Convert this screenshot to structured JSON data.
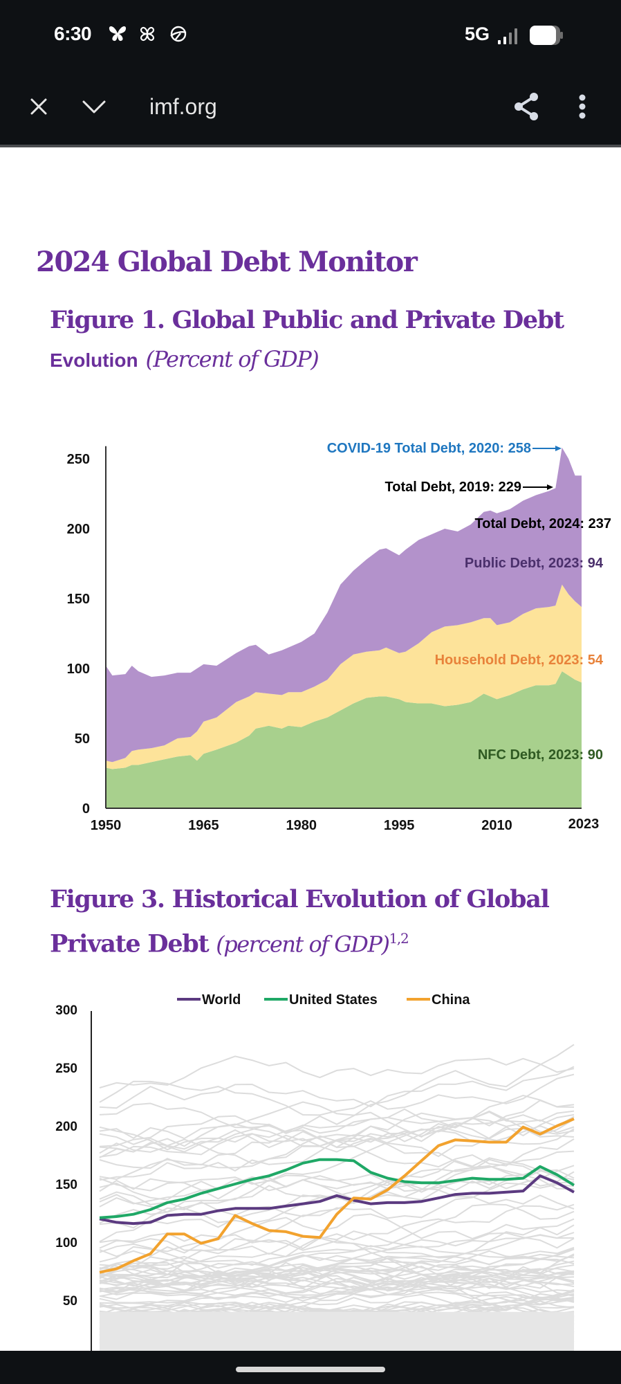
{
  "status_bar": {
    "time": "6:30",
    "notification_icons": [
      "butterfly-icon",
      "pinwheel-icon",
      "planet-icon"
    ],
    "network": "5G",
    "signal_icon": "signal-bars-icon",
    "battery_icon": "battery-icon"
  },
  "toolbar": {
    "close_icon": "close-icon",
    "collapse_icon": "chevron-down-icon",
    "url": "imf.org",
    "share_icon": "share-icon",
    "menu_icon": "more-vertical-icon"
  },
  "article": {
    "title": "2024 Global Debt Monitor",
    "figure1": {
      "title_line1": "Figure 1. Global Public and Private Debt",
      "title_line2": "Evolution",
      "units": "(Percent of GDP)"
    },
    "figure3": {
      "title_line1": "Figure 3. Historical Evolution of Global",
      "title_line2": "Private Debt",
      "units": "(percent of GDP)",
      "footnote_marks": "1,2"
    }
  },
  "chart_data": [
    {
      "type": "area",
      "stacked": true,
      "title": "Figure 1. Global Public and Private Debt Evolution (Percent of GDP)",
      "xlabel": "",
      "ylabel": "",
      "xlim": [
        1950,
        2023
      ],
      "ylim": [
        0,
        260
      ],
      "yticks": [
        "0",
        "50",
        "100",
        "150",
        "200",
        "250"
      ],
      "ytick_values": [
        0,
        50,
        100,
        150,
        200,
        250
      ],
      "xticks": [
        "1950",
        "1965",
        "1980",
        "1995",
        "2010",
        "2023"
      ],
      "xtick_values": [
        1950,
        1965,
        1980,
        1995,
        2010,
        2023
      ],
      "grid": false,
      "x": [
        1950,
        1951,
        1953,
        1954,
        1955,
        1957,
        1959,
        1961,
        1963,
        1964,
        1965,
        1967,
        1970,
        1972,
        1973,
        1975,
        1977,
        1978,
        1980,
        1982,
        1984,
        1986,
        1988,
        1990,
        1992,
        1993,
        1995,
        1996,
        1998,
        2000,
        2002,
        2004,
        2006,
        2008,
        2009,
        2010,
        2012,
        2014,
        2016,
        2018,
        2019,
        2020,
        2021,
        2022,
        2023
      ],
      "series": [
        {
          "name": "NFC Debt",
          "color": "#a8d08d",
          "values": [
            29,
            28,
            29,
            31,
            31,
            33,
            35,
            37,
            38,
            34,
            39,
            42,
            47,
            52,
            57,
            59,
            57,
            59,
            58,
            62,
            65,
            70,
            75,
            79,
            80,
            80,
            78,
            76,
            75,
            75,
            73,
            74,
            76,
            82,
            80,
            78,
            81,
            85,
            88,
            88,
            89,
            98,
            95,
            92,
            90
          ]
        },
        {
          "name": "Household Debt",
          "color": "#fde39a",
          "values": [
            5,
            5,
            7,
            10,
            11,
            10,
            10,
            13,
            13,
            21,
            23,
            23,
            29,
            28,
            26,
            23,
            24,
            24,
            25,
            25,
            27,
            33,
            35,
            33,
            33,
            35,
            33,
            36,
            43,
            51,
            57,
            57,
            57,
            54,
            56,
            53,
            52,
            54,
            55,
            56,
            56,
            62,
            58,
            56,
            54
          ]
        },
        {
          "name": "Public Debt",
          "color": "#b392cb",
          "values": [
            68,
            62,
            60,
            61,
            56,
            51,
            50,
            47,
            46,
            45,
            41,
            37,
            35,
            36,
            34,
            28,
            32,
            32,
            36,
            38,
            48,
            57,
            60,
            66,
            72,
            71,
            70,
            73,
            74,
            70,
            70,
            67,
            70,
            76,
            77,
            80,
            81,
            81,
            81,
            83,
            84,
            98,
            97,
            90,
            94
          ]
        }
      ],
      "annotations": [
        {
          "text": "COVID-19 Total Debt, 2020: 258",
          "color": "#1f77c0",
          "arrow": true
        },
        {
          "text": "Total Debt, 2019: 229",
          "color": "#000000",
          "arrow": true
        },
        {
          "text": "Total Debt, 2024: 237",
          "color": "#000000",
          "arrow": false
        },
        {
          "text": "Public Debt, 2023: 94",
          "color": "#4a2f6b",
          "arrow": false
        },
        {
          "text": "Household Debt, 2023: 54",
          "color": "#e8823a",
          "arrow": false
        },
        {
          "text": "NFC Debt, 2023: 90",
          "color": "#2f5a22",
          "arrow": false
        }
      ]
    },
    {
      "type": "line",
      "title": "Figure 3. Historical Evolution of Global Private Debt (percent of GDP)",
      "xlabel": "",
      "ylabel": "",
      "ylim": [
        0,
        300
      ],
      "yticks": [
        "50",
        "100",
        "150",
        "200",
        "250",
        "300"
      ],
      "ytick_values": [
        50,
        100,
        150,
        200,
        250,
        300
      ],
      "grid": false,
      "legend": "top-center",
      "x_index": [
        0,
        1,
        2,
        3,
        4,
        5,
        6,
        7,
        8,
        9,
        10,
        11,
        12,
        13,
        14,
        15,
        16,
        17,
        18,
        19,
        20,
        21,
        22,
        23,
        24,
        25,
        26,
        27,
        28
      ],
      "series": [
        {
          "name": "World",
          "color": "#5b3a80",
          "values": [
            120,
            117,
            116,
            117,
            123,
            124,
            124,
            127,
            129,
            129,
            129,
            131,
            133,
            135,
            140,
            136,
            133,
            134,
            134,
            135,
            138,
            141,
            142,
            142,
            143,
            144,
            157,
            151,
            143
          ]
        },
        {
          "name": "United States",
          "color": "#1fa866",
          "values": [
            121,
            122,
            124,
            128,
            134,
            137,
            142,
            146,
            150,
            154,
            157,
            162,
            168,
            171,
            171,
            170,
            160,
            155,
            152,
            151,
            151,
            153,
            155,
            154,
            154,
            155,
            165,
            158,
            149
          ]
        },
        {
          "name": "China",
          "color": "#f2a22e",
          "values": [
            74,
            77,
            84,
            90,
            107,
            107,
            99,
            103,
            123,
            116,
            110,
            109,
            105,
            104,
            124,
            138,
            137,
            145,
            157,
            170,
            183,
            188,
            187,
            186,
            186,
            199,
            193,
            200,
            206
          ]
        }
      ],
      "background_series_note": "many unlabeled country lines in light gray"
    }
  ]
}
